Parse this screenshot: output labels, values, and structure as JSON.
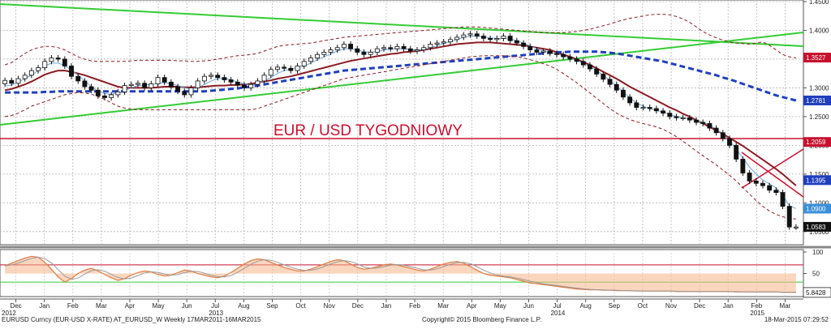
{
  "chart_data": {
    "type": "candlestick",
    "title": "EUR / USD TYGODNIOWY",
    "price_axis": {
      "ylim": [
        1.03,
        1.45
      ],
      "ticks": [
        {
          "value": 1.45,
          "label": "1.4500"
        },
        {
          "value": 1.4,
          "label": "1.4000"
        },
        {
          "value": 1.35,
          "label": "1.3500"
        },
        {
          "value": 1.3,
          "label": "1.3000"
        },
        {
          "value": 1.25,
          "label": "1.2500"
        },
        {
          "value": 1.2,
          "label": "1.2000"
        },
        {
          "value": 1.15,
          "label": "1.1500"
        },
        {
          "value": 1.1,
          "label": "1.1000"
        },
        {
          "value": 1.05,
          "label": "1.0500"
        }
      ],
      "value_boxes": [
        {
          "value": 1.3527,
          "label": "1.3527",
          "color": "#c8102e"
        },
        {
          "value": 1.2781,
          "label": "1.2781",
          "color": "#1f3fbf"
        },
        {
          "value": 1.2059,
          "label": "1.2059",
          "color": "#c8102e"
        },
        {
          "value": 1.1395,
          "label": "1.1395",
          "color": "#1f3fbf"
        },
        {
          "value": 1.09,
          "label": "1.0900",
          "color": "#3b8fd9"
        },
        {
          "value": 1.0583,
          "label": "1.0583",
          "color": "#111111"
        }
      ]
    },
    "oscillator_axis": {
      "ylim": [
        0,
        100
      ],
      "ticks": [
        {
          "value": 100,
          "label": "100"
        },
        {
          "value": 50,
          "label": "50"
        }
      ],
      "value_box": {
        "value": 5.8428,
        "label": "5.8428"
      },
      "overbought": 70,
      "oversold": 30
    },
    "x_axis": {
      "months": [
        "Dec",
        "Jan",
        "Feb",
        "Mar",
        "Apr",
        "May",
        "Jun",
        "Jul",
        "Aug",
        "Sep",
        "Oct",
        "Nov",
        "Dec",
        "Jan",
        "Feb",
        "Mar",
        "Apr",
        "May",
        "Jun",
        "Jul",
        "Aug",
        "Sep",
        "Oct",
        "Nov",
        "Dec",
        "Jan",
        "Feb",
        "Mar"
      ],
      "years": [
        "2012",
        "2013",
        "2014",
        "2015"
      ]
    },
    "weeks": 120,
    "closes": [
      1.313,
      1.308,
      1.316,
      1.322,
      1.33,
      1.335,
      1.346,
      1.352,
      1.35,
      1.338,
      1.32,
      1.312,
      1.302,
      1.296,
      1.286,
      1.283,
      1.288,
      1.293,
      1.304,
      1.306,
      1.308,
      1.3,
      1.307,
      1.318,
      1.31,
      1.302,
      1.294,
      1.288,
      1.3,
      1.312,
      1.32,
      1.322,
      1.318,
      1.314,
      1.31,
      1.305,
      1.3,
      1.306,
      1.312,
      1.322,
      1.332,
      1.336,
      1.334,
      1.33,
      1.338,
      1.346,
      1.352,
      1.358,
      1.362,
      1.366,
      1.37,
      1.376,
      1.368,
      1.362,
      1.358,
      1.362,
      1.368,
      1.37,
      1.368,
      1.372,
      1.368,
      1.364,
      1.366,
      1.37,
      1.376,
      1.378,
      1.38,
      1.384,
      1.388,
      1.392,
      1.394,
      1.39,
      1.386,
      1.384,
      1.386,
      1.39,
      1.382,
      1.378,
      1.372,
      1.366,
      1.362,
      1.364,
      1.36,
      1.358,
      1.354,
      1.35,
      1.346,
      1.34,
      1.333,
      1.324,
      1.315,
      1.306,
      1.296,
      1.284,
      1.274,
      1.266,
      1.266,
      1.264,
      1.26,
      1.256,
      1.25,
      1.248,
      1.248,
      1.244,
      1.24,
      1.238,
      1.23,
      1.222,
      1.212,
      1.2,
      1.176,
      1.152,
      1.138,
      1.134,
      1.13,
      1.122,
      1.118,
      1.094,
      1.058,
      1.058
    ],
    "series": [
      {
        "name": "",
        "color": "#8a1c24",
        "values": [
          1.296,
          1.298,
          1.302,
          1.306,
          1.311,
          1.317,
          1.323,
          1.327,
          1.33,
          1.33,
          1.328,
          1.325,
          1.322,
          1.318,
          1.314,
          1.31,
          1.306,
          1.302,
          1.3,
          1.3,
          1.3,
          1.3,
          1.3,
          1.301,
          1.302,
          1.302,
          1.302,
          1.301,
          1.301,
          1.301,
          1.302,
          1.303,
          1.304,
          1.304,
          1.305,
          1.305,
          1.306,
          1.307,
          1.309,
          1.311,
          1.313,
          1.316,
          1.318,
          1.32,
          1.323,
          1.326,
          1.329,
          1.332,
          1.335,
          1.338,
          1.341,
          1.344,
          1.347,
          1.349,
          1.351,
          1.353,
          1.355,
          1.357,
          1.359,
          1.36,
          1.362,
          1.363,
          1.364,
          1.366,
          1.368,
          1.37,
          1.372,
          1.374,
          1.376,
          1.377,
          1.378,
          1.379,
          1.379,
          1.379,
          1.378,
          1.377,
          1.376,
          1.375,
          1.374,
          1.372,
          1.37,
          1.368,
          1.366,
          1.362,
          1.358,
          1.354,
          1.35,
          1.345,
          1.34,
          1.334,
          1.328,
          1.322,
          1.316,
          1.309,
          1.302,
          1.296,
          1.29,
          1.284,
          1.278,
          1.272,
          1.266,
          1.261,
          1.255,
          1.25,
          1.244,
          1.238,
          1.232,
          1.226,
          1.22,
          1.213,
          1.206,
          1.199,
          1.191,
          1.183,
          1.175,
          1.167,
          1.159,
          1.15,
          1.14,
          1.13
        ]
      },
      {
        "name": "",
        "color": "#6fa6d6",
        "values": [
          1.303,
          1.305,
          1.31,
          1.316,
          1.322,
          1.33,
          1.338,
          1.343,
          1.343,
          1.339,
          1.331,
          1.322,
          1.312,
          1.302,
          1.294,
          1.29,
          1.289,
          1.291,
          1.295,
          1.3,
          1.304,
          1.305,
          1.306,
          1.308,
          1.309,
          1.307,
          1.304,
          1.3,
          1.298,
          1.3,
          1.306,
          1.312,
          1.316,
          1.317,
          1.314,
          1.31,
          1.307,
          1.305,
          1.307,
          1.312,
          1.318,
          1.325,
          1.33,
          1.333,
          1.335,
          1.338,
          1.343,
          1.349,
          1.354,
          1.359,
          1.364,
          1.368,
          1.368,
          1.366,
          1.363,
          1.362,
          1.363,
          1.366,
          1.367,
          1.368,
          1.368,
          1.367,
          1.366,
          1.367,
          1.37,
          1.373,
          1.377,
          1.38,
          1.384,
          1.388,
          1.39,
          1.39,
          1.389,
          1.387,
          1.386,
          1.386,
          1.385,
          1.382,
          1.378,
          1.373,
          1.368,
          1.365,
          1.362,
          1.359,
          1.356,
          1.352,
          1.348,
          1.343,
          1.337,
          1.33,
          1.322,
          1.313,
          1.303,
          1.293,
          1.283,
          1.274,
          1.268,
          1.264,
          1.261,
          1.258,
          1.254,
          1.25,
          1.248,
          1.246,
          1.243,
          1.24,
          1.235,
          1.228,
          1.219,
          1.208,
          1.194,
          1.178,
          1.162,
          1.15,
          1.14,
          1.133,
          1.126,
          1.113,
          1.095,
          1.09
        ]
      },
      {
        "name": "",
        "color": "#1f3fbf",
        "values": [
          1.292,
          1.292,
          1.292,
          1.292,
          1.292,
          1.292,
          1.293,
          1.293,
          1.294,
          1.294,
          1.294,
          1.294,
          1.294,
          1.294,
          1.294,
          1.294,
          1.294,
          1.294,
          1.294,
          1.294,
          1.294,
          1.294,
          1.294,
          1.294,
          1.294,
          1.294,
          1.294,
          1.294,
          1.294,
          1.294,
          1.294,
          1.295,
          1.296,
          1.297,
          1.298,
          1.299,
          1.301,
          1.302,
          1.304,
          1.306,
          1.308,
          1.31,
          1.312,
          1.314,
          1.316,
          1.318,
          1.32,
          1.322,
          1.324,
          1.326,
          1.328,
          1.33,
          1.331,
          1.332,
          1.333,
          1.334,
          1.335,
          1.336,
          1.337,
          1.338,
          1.339,
          1.34,
          1.341,
          1.342,
          1.343,
          1.344,
          1.345,
          1.346,
          1.347,
          1.348,
          1.349,
          1.35,
          1.351,
          1.352,
          1.353,
          1.354,
          1.355,
          1.356,
          1.357,
          1.358,
          1.359,
          1.36,
          1.361,
          1.362,
          1.362,
          1.363,
          1.363,
          1.363,
          1.363,
          1.363,
          1.362,
          1.361,
          1.36,
          1.358,
          1.356,
          1.354,
          1.352,
          1.35,
          1.348,
          1.346,
          1.343,
          1.34,
          1.337,
          1.334,
          1.331,
          1.328,
          1.325,
          1.322,
          1.318,
          1.315,
          1.311,
          1.307,
          1.303,
          1.299,
          1.295,
          1.291,
          1.287,
          1.284,
          1.281,
          1.278
        ]
      },
      {
        "name": "",
        "color": "#8a1c24",
        "values": [
          1.34,
          1.344,
          1.352,
          1.36,
          1.366,
          1.37,
          1.372,
          1.372,
          1.37,
          1.366,
          1.36,
          1.354,
          1.35,
          1.347,
          1.346,
          1.346,
          1.346,
          1.346,
          1.346,
          1.347,
          1.348,
          1.348,
          1.348,
          1.348,
          1.348,
          1.348,
          1.347,
          1.347,
          1.346,
          1.346,
          1.347,
          1.348,
          1.35,
          1.352,
          1.354,
          1.356,
          1.357,
          1.358,
          1.36,
          1.364,
          1.368,
          1.372,
          1.374,
          1.375,
          1.376,
          1.377,
          1.378,
          1.38,
          1.382,
          1.384,
          1.386,
          1.388,
          1.389,
          1.39,
          1.391,
          1.392,
          1.393,
          1.394,
          1.395,
          1.396,
          1.397,
          1.398,
          1.399,
          1.4,
          1.401,
          1.402,
          1.403,
          1.404,
          1.405,
          1.406,
          1.406,
          1.406,
          1.405,
          1.404,
          1.403,
          1.402,
          1.401,
          1.4,
          1.399,
          1.398,
          1.397,
          1.396,
          1.396,
          1.396,
          1.396,
          1.397,
          1.398,
          1.4,
          1.402,
          1.405,
          1.408,
          1.411,
          1.415,
          1.418,
          1.421,
          1.423,
          1.425,
          1.427,
          1.428,
          1.428,
          1.427,
          1.424,
          1.42,
          1.414,
          1.406,
          1.398,
          1.392,
          1.387,
          1.383,
          1.38,
          1.378,
          1.377,
          1.376,
          1.378,
          1.38,
          1.374,
          1.366,
          1.358,
          1.354,
          1.352
        ]
      },
      {
        "name": "",
        "color": "#8a1c24",
        "values": [
          1.25,
          1.252,
          1.256,
          1.262,
          1.268,
          1.272,
          1.276,
          1.28,
          1.284,
          1.288,
          1.29,
          1.292,
          1.291,
          1.289,
          1.285,
          1.28,
          1.274,
          1.268,
          1.265,
          1.263,
          1.262,
          1.262,
          1.262,
          1.262,
          1.262,
          1.262,
          1.262,
          1.262,
          1.262,
          1.262,
          1.262,
          1.262,
          1.262,
          1.262,
          1.262,
          1.262,
          1.262,
          1.262,
          1.264,
          1.268,
          1.272,
          1.276,
          1.28,
          1.284,
          1.288,
          1.292,
          1.296,
          1.3,
          1.304,
          1.308,
          1.312,
          1.316,
          1.318,
          1.32,
          1.322,
          1.324,
          1.326,
          1.328,
          1.33,
          1.332,
          1.334,
          1.336,
          1.338,
          1.34,
          1.342,
          1.344,
          1.346,
          1.348,
          1.35,
          1.352,
          1.354,
          1.355,
          1.356,
          1.356,
          1.356,
          1.356,
          1.355,
          1.354,
          1.352,
          1.349,
          1.346,
          1.342,
          1.338,
          1.332,
          1.325,
          1.317,
          1.309,
          1.3,
          1.291,
          1.282,
          1.273,
          1.264,
          1.256,
          1.25,
          1.245,
          1.241,
          1.238,
          1.235,
          1.232,
          1.228,
          1.222,
          1.215,
          1.207,
          1.199,
          1.19,
          1.182,
          1.174,
          1.166,
          1.157,
          1.148,
          1.138,
          1.127,
          1.115,
          1.104,
          1.094,
          1.086,
          1.08,
          1.076,
          1.073,
          1.072
        ]
      }
    ],
    "oscillator": [
      68,
      74,
      80,
      86,
      90,
      88,
      76,
      60,
      42,
      30,
      38,
      50,
      58,
      62,
      56,
      48,
      40,
      34,
      38,
      46,
      52,
      56,
      54,
      48,
      44,
      46,
      52,
      58,
      56,
      50,
      46,
      42,
      40,
      44,
      52,
      62,
      72,
      80,
      84,
      82,
      76,
      70,
      64,
      60,
      56,
      56,
      60,
      66,
      72,
      78,
      82,
      80,
      72,
      64,
      60,
      62,
      66,
      70,
      72,
      70,
      66,
      62,
      58,
      56,
      60,
      66,
      72,
      76,
      78,
      74,
      66,
      58,
      50,
      46,
      44,
      42,
      40,
      36,
      32,
      28,
      26,
      24,
      22,
      20,
      18,
      16,
      14,
      13,
      12,
      12,
      11,
      11,
      10,
      10,
      10,
      9,
      9,
      9,
      9,
      9,
      9,
      8,
      8,
      8,
      8,
      8,
      8,
      8,
      8,
      8,
      7,
      7,
      7,
      7,
      7,
      7,
      7,
      6,
      6,
      6
    ]
  },
  "footer": {
    "left": "EURUSD Curncy (EUR-USD X-RATE) AT_EURUSD_W  Weekly 17MAR2011-16MAR2015",
    "center": "Copyright© 2015 Bloomberg Finance L.P.",
    "right": "18-Mar-2015 07:29:52"
  }
}
